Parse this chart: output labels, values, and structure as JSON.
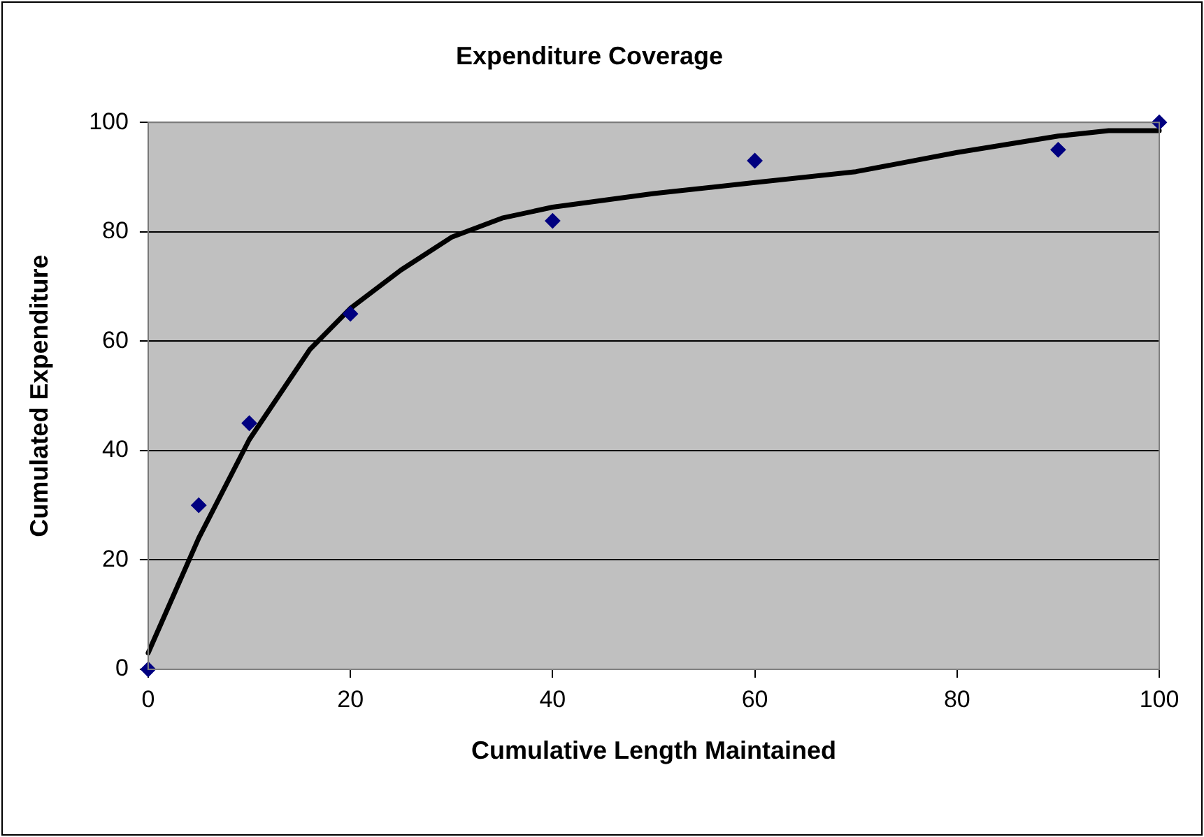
{
  "chart_data": {
    "type": "scatter",
    "title": "Expenditure Coverage",
    "xlabel": "Cumulative Length Maintained",
    "ylabel": "Cumulated Expenditure",
    "xlim": [
      0,
      100
    ],
    "xticks": [
      0,
      20,
      40,
      60,
      80,
      100
    ],
    "ylim": [
      0,
      100
    ],
    "yticks": [
      0,
      20,
      40,
      60,
      80,
      100
    ],
    "grid": "y",
    "legend": false,
    "series": [
      {
        "type": "scatter",
        "color": "#000080",
        "marker": "diamond",
        "x": [
          0,
          5,
          10,
          20,
          40,
          60,
          90,
          100
        ],
        "values": [
          0,
          30,
          45,
          65,
          82,
          93,
          95,
          100
        ]
      },
      {
        "type": "line",
        "color": "#000000",
        "marker": "none",
        "line_style": "solid",
        "x": [
          0,
          5,
          10,
          16,
          20,
          25,
          30,
          35,
          40,
          50,
          60,
          70,
          80,
          90,
          95,
          100
        ],
        "values": [
          3,
          24,
          42,
          58.5,
          66,
          73,
          79,
          82.5,
          84.5,
          87,
          89,
          91,
          94.5,
          97.5,
          98.5,
          98.5
        ]
      }
    ]
  }
}
